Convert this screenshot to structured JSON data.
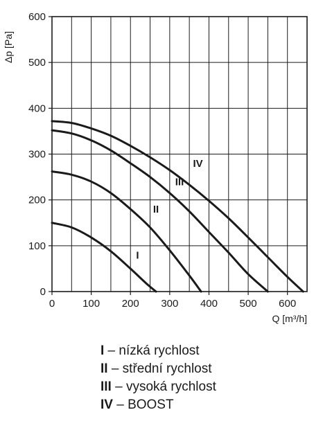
{
  "chart_data": {
    "type": "line",
    "xlabel": "Q [m³/h]",
    "ylabel": "Δp [Pa]",
    "xlim": [
      0,
      650
    ],
    "ylim": [
      0,
      600
    ],
    "x_ticks": [
      0,
      100,
      200,
      300,
      400,
      500,
      600
    ],
    "y_ticks": [
      0,
      100,
      200,
      300,
      400,
      500,
      600
    ],
    "grid": true,
    "grid_minor_x_step": 50,
    "series": [
      {
        "name": "I",
        "x": [
          0,
          50,
          100,
          150,
          200,
          240,
          265
        ],
        "y": [
          150,
          140,
          118,
          88,
          50,
          18,
          0
        ]
      },
      {
        "name": "II",
        "x": [
          0,
          50,
          100,
          150,
          200,
          250,
          300,
          350,
          380
        ],
        "y": [
          262,
          255,
          240,
          215,
          180,
          140,
          90,
          35,
          0
        ]
      },
      {
        "name": "III",
        "x": [
          0,
          50,
          100,
          150,
          200,
          250,
          300,
          350,
          400,
          450,
          500,
          550
        ],
        "y": [
          352,
          345,
          330,
          308,
          280,
          250,
          215,
          175,
          130,
          85,
          38,
          0
        ]
      },
      {
        "name": "IV",
        "x": [
          0,
          50,
          100,
          150,
          200,
          250,
          300,
          350,
          400,
          450,
          500,
          550,
          600,
          640
        ],
        "y": [
          372,
          368,
          356,
          340,
          318,
          293,
          265,
          233,
          198,
          160,
          118,
          75,
          32,
          0
        ]
      }
    ],
    "curve_labels": [
      {
        "text": "I",
        "x": 218,
        "y": 72
      },
      {
        "text": "II",
        "x": 265,
        "y": 172
      },
      {
        "text": "III",
        "x": 325,
        "y": 232
      },
      {
        "text": "IV",
        "x": 372,
        "y": 272
      }
    ]
  },
  "legend": [
    {
      "key": "I",
      "text": " – nízká rychlost"
    },
    {
      "key": "II",
      "text": " – střední rychlost"
    },
    {
      "key": "III",
      "text": " – vysoká rychlost"
    },
    {
      "key": "IV",
      "text": " – BOOST"
    }
  ]
}
